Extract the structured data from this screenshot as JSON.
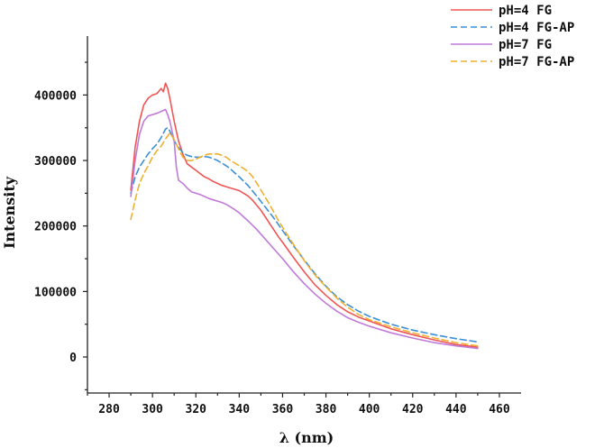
{
  "chart_data": {
    "type": "line",
    "xlabel": "λ (nm)",
    "ylabel": "Intensity",
    "xlim": [
      270,
      470
    ],
    "ylim": [
      -55000,
      490000
    ],
    "x_ticks": [
      280,
      300,
      320,
      340,
      360,
      380,
      400,
      420,
      440,
      460
    ],
    "x_tick_labels": [
      "280",
      "300",
      "320",
      "340",
      "360",
      "380",
      "400",
      "420",
      "440",
      "460"
    ],
    "y_ticks": [
      0,
      100000,
      200000,
      300000,
      400000
    ],
    "y_tick_labels": [
      "0",
      "100000",
      "200000",
      "300000",
      "400000"
    ],
    "grid": false,
    "legend_position": "top-right",
    "series": [
      {
        "name": "pH=4 FG",
        "color": "#f05555",
        "dash": "solid",
        "x": [
          290,
          292,
          294,
          296,
          298,
          300,
          302,
          304,
          305,
          306,
          307,
          308,
          310,
          312,
          314,
          316,
          318,
          320,
          322,
          324,
          326,
          328,
          330,
          332,
          334,
          336,
          338,
          340,
          342,
          344,
          346,
          348,
          350,
          352,
          354,
          356,
          358,
          360,
          365,
          370,
          375,
          380,
          385,
          390,
          395,
          400,
          410,
          420,
          430,
          440,
          450
        ],
        "y": [
          255000,
          320000,
          360000,
          385000,
          395000,
          400000,
          402000,
          410000,
          405000,
          418000,
          410000,
          395000,
          360000,
          330000,
          310000,
          295000,
          290000,
          285000,
          280000,
          275000,
          272000,
          268000,
          265000,
          262000,
          260000,
          258000,
          256000,
          254000,
          250000,
          246000,
          240000,
          232000,
          224000,
          214000,
          204000,
          194000,
          184000,
          175000,
          152000,
          130000,
          110000,
          94000,
          80000,
          69000,
          61000,
          55000,
          43000,
          34000,
          26000,
          19000,
          15000
        ]
      },
      {
        "name": "pH=4 FG-AP",
        "color": "#3b8fd6",
        "dash": "dashed",
        "x": [
          290,
          292,
          294,
          296,
          298,
          300,
          302,
          304,
          306,
          307,
          308,
          310,
          312,
          314,
          316,
          318,
          320,
          322,
          324,
          326,
          328,
          330,
          332,
          334,
          336,
          338,
          340,
          344,
          348,
          352,
          356,
          360,
          365,
          370,
          375,
          380,
          385,
          390,
          395,
          400,
          410,
          420,
          430,
          440,
          450
        ],
        "y": [
          250000,
          275000,
          290000,
          300000,
          310000,
          318000,
          325000,
          335000,
          348000,
          350000,
          345000,
          330000,
          320000,
          312000,
          308000,
          306000,
          305000,
          305000,
          306000,
          305000,
          303000,
          300000,
          296000,
          292000,
          287000,
          281000,
          275000,
          262000,
          246000,
          229000,
          212000,
          193000,
          170000,
          148000,
          127000,
          108000,
          92000,
          80000,
          70000,
          62000,
          50000,
          41000,
          34000,
          28000,
          23000
        ]
      },
      {
        "name": "pH=7 FG",
        "color": "#c07ad8",
        "dash": "solid",
        "x": [
          290,
          292,
          294,
          296,
          298,
          300,
          302,
          304,
          306,
          307,
          308,
          310,
          311,
          312,
          314,
          316,
          318,
          320,
          322,
          324,
          326,
          328,
          330,
          332,
          334,
          336,
          338,
          340,
          344,
          348,
          352,
          356,
          360,
          365,
          370,
          375,
          380,
          385,
          390,
          395,
          400,
          410,
          420,
          430,
          440,
          450
        ],
        "y": [
          245000,
          300000,
          340000,
          360000,
          368000,
          370000,
          372000,
          375000,
          378000,
          370000,
          360000,
          330000,
          290000,
          270000,
          265000,
          258000,
          252000,
          250000,
          248000,
          245000,
          242000,
          240000,
          238000,
          236000,
          233000,
          229000,
          225000,
          220000,
          208000,
          195000,
          180000,
          165000,
          150000,
          130000,
          112000,
          96000,
          82000,
          70000,
          60000,
          53000,
          47000,
          37000,
          29000,
          22000,
          17000,
          13000
        ]
      },
      {
        "name": "pH=7 FG-AP",
        "color": "#f0b030",
        "dash": "dashed",
        "x": [
          290,
          292,
          294,
          296,
          298,
          300,
          302,
          304,
          306,
          308,
          310,
          312,
          314,
          316,
          318,
          320,
          322,
          324,
          326,
          328,
          330,
          332,
          334,
          336,
          338,
          340,
          342,
          344,
          346,
          348,
          350,
          352,
          354,
          356,
          358,
          360,
          365,
          370,
          375,
          380,
          385,
          390,
          395,
          400,
          410,
          420,
          430,
          440,
          450
        ],
        "y": [
          210000,
          240000,
          265000,
          280000,
          292000,
          305000,
          315000,
          322000,
          333000,
          342000,
          332000,
          318000,
          305000,
          300000,
          300000,
          302000,
          305000,
          308000,
          310000,
          310000,
          310000,
          308000,
          305000,
          300000,
          296000,
          292000,
          288000,
          283000,
          276000,
          266000,
          255000,
          244000,
          233000,
          221000,
          209000,
          198000,
          172000,
          147000,
          125000,
          107000,
          90000,
          76000,
          65000,
          57000,
          46000,
          37000,
          29000,
          22000,
          17000
        ]
      }
    ]
  }
}
